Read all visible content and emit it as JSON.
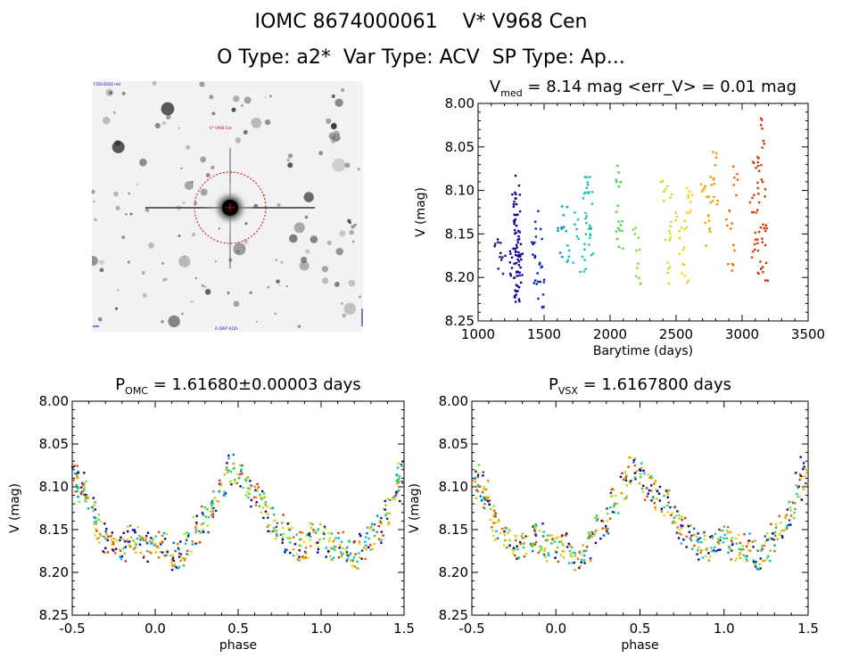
{
  "header": {
    "line1": "IOMC 8674000061    V* V968 Cen",
    "line2": "O Type: a2*  Var Type: ACV  SP Type: Ap..."
  },
  "image_panel": {
    "top_left_label": "F350 DSS2 red",
    "target_label": "V* V968 Cen",
    "bottom_label": "A 1997 A12h",
    "circle_color": "#e00000",
    "label_color": "#0000cc"
  },
  "chart_data": [
    {
      "id": "lightcurve",
      "type": "scatter",
      "title_main": "V",
      "title_sub": "med",
      "title_rest": " = 8.14 mag <err_V> = 0.01 mag",
      "xlabel": "Barytime (days)",
      "ylabel": "V (mag)",
      "xlim": [
        1000,
        3500
      ],
      "ylim": [
        8.25,
        8.0
      ],
      "y_inverted": true,
      "xticks": [
        1000,
        1500,
        2000,
        2500,
        3000,
        3500
      ],
      "yticks": [
        "8.00",
        "8.05",
        "8.10",
        "8.15",
        "8.20",
        "8.25"
      ],
      "color_by_time": true,
      "series": [
        {
          "x": [
            1150,
            1180,
            1260,
            1270,
            1285,
            1290,
            1295,
            1300,
            1300,
            1305,
            1290,
            1295,
            1280,
            1300,
            1300,
            1310,
            1420,
            1450,
            1460,
            1470,
            1480,
            1620,
            1650,
            1700,
            1740,
            1800,
            1810,
            1820,
            1830,
            1840,
            1850,
            2060,
            2070,
            2080,
            2200,
            2210,
            2410,
            2440,
            2460,
            2480,
            2550,
            2570,
            2590,
            2600,
            2710,
            2740,
            2760,
            2780,
            2790,
            2900,
            2920,
            2940,
            3080,
            3100,
            3110,
            3120,
            3130,
            3140,
            3150,
            3160,
            3170,
            3175
          ],
          "y": [
            8.165,
            8.18,
            8.18,
            8.21,
            8.15,
            8.1,
            8.22,
            8.13,
            8.17,
            8.19,
            8.2,
            8.14,
            8.12,
            8.16,
            8.21,
            8.18,
            8.16,
            8.19,
            8.14,
            8.22,
            8.2,
            8.16,
            8.13,
            8.17,
            8.14,
            8.18,
            8.12,
            8.09,
            8.15,
            8.1,
            8.16,
            8.08,
            8.13,
            8.15,
            8.16,
            8.2,
            8.1,
            8.15,
            8.19,
            8.12,
            8.16,
            8.2,
            8.13,
            8.11,
            8.09,
            8.15,
            8.12,
            8.07,
            8.1,
            8.14,
            8.18,
            8.09,
            8.12,
            8.16,
            8.08,
            8.18,
            8.06,
            8.14,
            8.1,
            8.03,
            8.19,
            8.15
          ]
        }
      ]
    },
    {
      "id": "phase_omc",
      "type": "scatter",
      "title_main": "P",
      "title_sub": "OMC",
      "title_rest": " = 1.61680±0.00003 days",
      "xlabel": "phase",
      "ylabel": "V (mag)",
      "xlim": [
        -0.5,
        1.5
      ],
      "ylim": [
        8.25,
        8.0
      ],
      "y_inverted": true,
      "xticks": [
        "-0.5",
        "0.0",
        "0.5",
        "1.0",
        "1.5"
      ],
      "yticks": [
        "8.00",
        "8.05",
        "8.10",
        "8.15",
        "8.20",
        "8.25"
      ],
      "series": [
        {
          "x": [
            -0.48,
            -0.45,
            -0.42,
            -0.38,
            -0.35,
            -0.3,
            -0.25,
            -0.2,
            -0.15,
            -0.1,
            -0.05,
            0.0,
            0.05,
            0.1,
            0.15,
            0.2,
            0.25,
            0.3,
            0.35,
            0.4,
            0.45,
            0.5,
            0.55,
            0.6,
            0.65,
            0.7,
            0.75,
            0.8,
            0.85,
            0.9,
            0.95,
            1.0,
            1.05,
            1.1,
            1.15,
            1.2,
            1.25,
            1.3,
            1.35,
            1.4,
            1.45,
            1.48
          ],
          "y": [
            8.09,
            8.1,
            8.11,
            8.13,
            8.15,
            8.16,
            8.17,
            8.17,
            8.16,
            8.16,
            8.17,
            8.17,
            8.17,
            8.18,
            8.18,
            8.17,
            8.15,
            8.14,
            8.12,
            8.1,
            8.08,
            8.09,
            8.1,
            8.11,
            8.12,
            8.14,
            8.15,
            8.16,
            8.17,
            8.17,
            8.16,
            8.16,
            8.17,
            8.17,
            8.17,
            8.18,
            8.17,
            8.16,
            8.15,
            8.13,
            8.1,
            8.08
          ]
        }
      ]
    },
    {
      "id": "phase_vsx",
      "type": "scatter",
      "title_main": "P",
      "title_sub": "VSX",
      "title_rest": " = 1.6167800 days",
      "xlabel": "phase",
      "ylabel": "V (mag)",
      "xlim": [
        -0.5,
        1.5
      ],
      "ylim": [
        8.25,
        8.0
      ],
      "y_inverted": true,
      "xticks": [
        "-0.5",
        "0.0",
        "0.5",
        "1.0",
        "1.5"
      ],
      "yticks": [
        "8.00",
        "8.05",
        "8.10",
        "8.15",
        "8.20",
        "8.25"
      ],
      "series": [
        {
          "x": [
            -0.48,
            -0.45,
            -0.42,
            -0.38,
            -0.35,
            -0.3,
            -0.25,
            -0.2,
            -0.15,
            -0.1,
            -0.05,
            0.0,
            0.05,
            0.1,
            0.15,
            0.2,
            0.25,
            0.3,
            0.35,
            0.4,
            0.45,
            0.5,
            0.55,
            0.6,
            0.65,
            0.7,
            0.75,
            0.8,
            0.85,
            0.9,
            0.95,
            1.0,
            1.05,
            1.1,
            1.15,
            1.2,
            1.25,
            1.3,
            1.35,
            1.4,
            1.45,
            1.48
          ],
          "y": [
            8.09,
            8.1,
            8.11,
            8.13,
            8.15,
            8.16,
            8.17,
            8.17,
            8.16,
            8.16,
            8.17,
            8.17,
            8.17,
            8.18,
            8.18,
            8.17,
            8.15,
            8.14,
            8.12,
            8.1,
            8.08,
            8.09,
            8.1,
            8.11,
            8.12,
            8.14,
            8.15,
            8.16,
            8.17,
            8.17,
            8.16,
            8.16,
            8.17,
            8.17,
            8.17,
            8.18,
            8.17,
            8.16,
            8.15,
            8.13,
            8.1,
            8.08
          ]
        }
      ]
    }
  ]
}
